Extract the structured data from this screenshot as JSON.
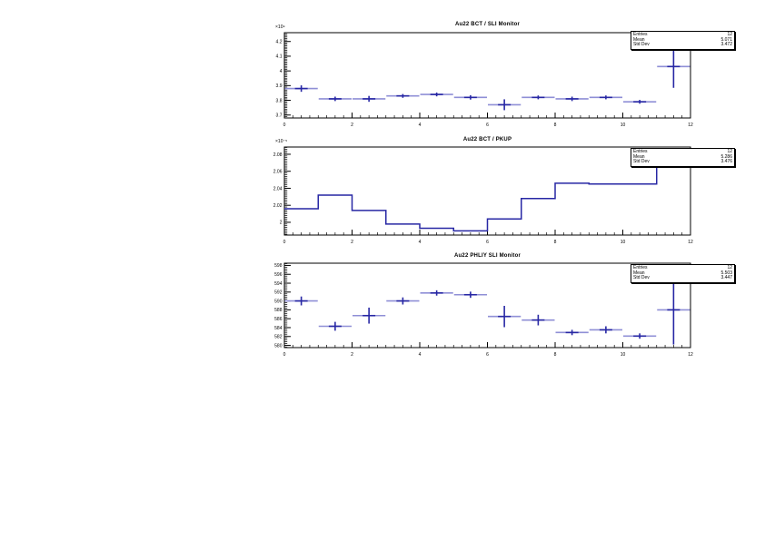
{
  "stats_labels": {
    "entries": "Entries",
    "mean": "Mean",
    "std_dev": "Std Dev"
  },
  "chart_data": [
    {
      "type": "scatter",
      "style": "errorbar-histogram",
      "title": "Au22 BCT / SLI Monitor",
      "exponent_label": "×10⁹",
      "xlabel": "",
      "ylabel": "",
      "xlim": [
        0,
        12
      ],
      "ylim": [
        3.68,
        4.26
      ],
      "xticks": {
        "major": [
          0,
          2,
          4,
          6,
          8,
          10,
          12
        ],
        "labels": [
          "0",
          "2",
          "4",
          "6",
          "8",
          "10",
          "12"
        ],
        "minor_step": 0.25
      },
      "yticks": {
        "major": [
          3.7,
          3.8,
          3.9,
          4.0,
          4.1,
          4.2
        ],
        "labels": [
          "3.7",
          "3.8",
          "3.9",
          "4",
          "4.1",
          "4.2"
        ],
        "minor_step": 0.01
      },
      "grid": false,
      "legend_position": "none",
      "x": [
        0.5,
        1.5,
        2.5,
        3.5,
        4.5,
        5.5,
        6.5,
        7.5,
        8.5,
        9.5,
        10.5,
        11.5
      ],
      "xerr": 0.5,
      "values": [
        3.88,
        3.81,
        3.81,
        3.83,
        3.84,
        3.82,
        3.77,
        3.82,
        3.81,
        3.82,
        3.79,
        4.03
      ],
      "yerr": [
        0.022,
        0.015,
        0.02,
        0.013,
        0.013,
        0.015,
        0.037,
        0.013,
        0.015,
        0.013,
        0.013,
        0.145
      ],
      "stats": {
        "entries": "12",
        "mean": "5.071",
        "std_dev": "3.472"
      }
    },
    {
      "type": "line",
      "style": "step-histogram",
      "title": "Au22 BCT / PKUP",
      "exponent_label": "×10⁻⁵",
      "xlabel": "",
      "ylabel": "",
      "xlim": [
        0,
        12
      ],
      "ylim": [
        1.985,
        2.0885
      ],
      "xticks": {
        "major": [
          0,
          2,
          4,
          6,
          8,
          10,
          12
        ],
        "labels": [
          "0",
          "2",
          "4",
          "6",
          "8",
          "10",
          "12"
        ],
        "minor_step": 0.25
      },
      "yticks": {
        "major": [
          2.0,
          2.02,
          2.04,
          2.06,
          2.08
        ],
        "labels": [
          "2",
          "2.02",
          "2.04",
          "2.06",
          "2.08"
        ],
        "minor_step": 0.002
      },
      "grid": false,
      "legend_position": "none",
      "bin_edges": [
        0,
        1,
        2,
        3,
        4,
        5,
        6,
        7,
        8,
        9,
        10,
        11,
        12
      ],
      "values": [
        2.016,
        2.032,
        2.014,
        1.998,
        1.993,
        1.99,
        2.004,
        2.028,
        2.046,
        2.045,
        2.045,
        2.07
      ],
      "stats": {
        "entries": "12",
        "mean": "5.286",
        "std_dev": "3.476"
      }
    },
    {
      "type": "scatter",
      "style": "errorbar-histogram",
      "title": "Au22 PHLIY SLI Monitor",
      "exponent_label": "",
      "xlabel": "",
      "ylabel": "",
      "xlim": [
        0,
        12
      ],
      "ylim": [
        579.5,
        598.5
      ],
      "xticks": {
        "major": [
          0,
          2,
          4,
          6,
          8,
          10,
          12
        ],
        "labels": [
          "0",
          "2",
          "4",
          "6",
          "8",
          "10",
          "12"
        ],
        "minor_step": 0.25
      },
      "yticks": {
        "major": [
          580,
          582,
          584,
          586,
          588,
          590,
          592,
          594,
          596,
          598
        ],
        "labels": [
          "580",
          "582",
          "584",
          "586",
          "588",
          "590",
          "592",
          "594",
          "596",
          "598"
        ],
        "minor_step": 0.4
      },
      "grid": false,
      "legend_position": "none",
      "x": [
        0.5,
        1.5,
        2.5,
        3.5,
        4.5,
        5.5,
        6.5,
        7.5,
        8.5,
        9.5,
        10.5,
        11.5
      ],
      "xerr": 0.5,
      "values": [
        590.0,
        584.3,
        586.7,
        590.0,
        591.8,
        591.4,
        586.5,
        585.7,
        582.9,
        583.5,
        582.1,
        588.0
      ],
      "yerr": [
        1.0,
        1.0,
        1.8,
        0.8,
        0.6,
        0.7,
        2.4,
        1.2,
        0.6,
        0.8,
        0.6,
        7.8
      ],
      "stats": {
        "entries": "12",
        "mean": "5.503",
        "std_dev": "3.447"
      }
    }
  ],
  "colors": {
    "data_blue": "#2727a4",
    "data_blue_light": "#8f8fd6",
    "frame": "#000000",
    "text": "#000000",
    "background": "#ffffff"
  }
}
